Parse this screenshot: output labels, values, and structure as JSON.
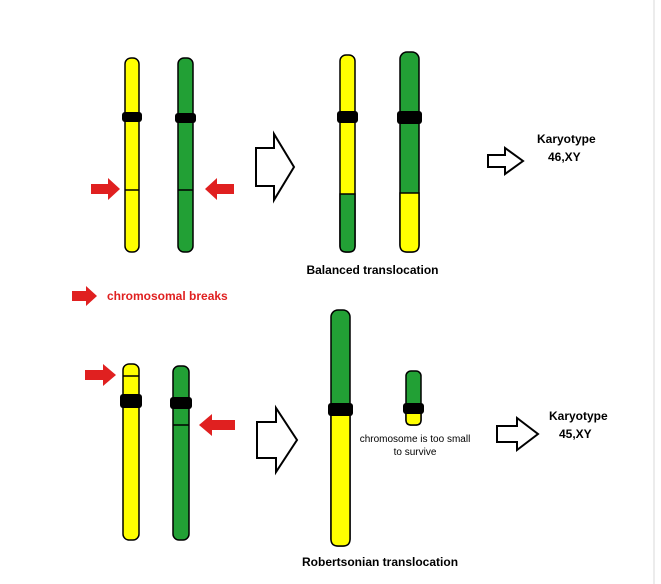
{
  "colors": {
    "yellow": "#ffff00",
    "green": "#22a035",
    "centromere": "#000000",
    "break_arrow": "#e02020",
    "outline": "#000000"
  },
  "legend": {
    "icon": "red-arrow-icon",
    "label": "chromosomal breaks"
  },
  "balanced": {
    "caption": "Balanced translocation",
    "karyotype_title": "Karyotype",
    "karyotype_value": "46,XY"
  },
  "robertsonian": {
    "caption": "Robertsonian translocation",
    "note": "chromosome is too small to survive",
    "karyotype_title": "Karyotype",
    "karyotype_value": "45,XY"
  }
}
